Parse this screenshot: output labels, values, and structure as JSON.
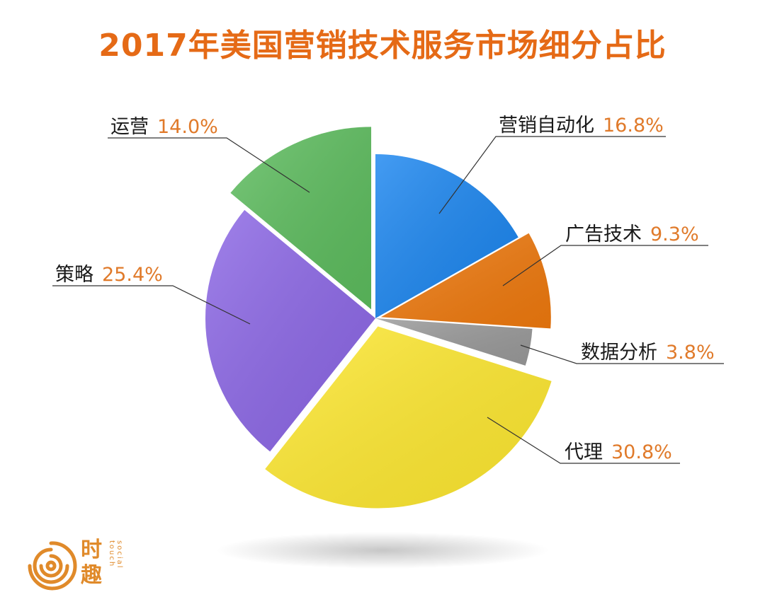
{
  "chart_data": {
    "type": "pie",
    "title": "2017年美国营销技术服务市场细分占比",
    "slices": [
      {
        "name": "营销自动化",
        "value": 16.8,
        "label": "16.8%",
        "color": "#1b86f0"
      },
      {
        "name": "广告技术",
        "value": 9.3,
        "label": "9.3%",
        "color": "#f07a0e"
      },
      {
        "name": "数据分析",
        "value": 3.8,
        "label": "3.8%",
        "color": "#9a9a9a"
      },
      {
        "name": "代理",
        "value": 30.8,
        "label": "30.8%",
        "color": "#ffe930"
      },
      {
        "name": "策略",
        "value": 25.4,
        "label": "25.4%",
        "color": "#8c67e6"
      },
      {
        "name": "运营",
        "value": 14.0,
        "label": "14.0%",
        "color": "#5dbd5e"
      }
    ],
    "legend": "callout-labels"
  },
  "brand": {
    "name_cn_1": "时",
    "name_cn_2": "趣",
    "name_en": "social touch",
    "color": "#e08a2a"
  }
}
